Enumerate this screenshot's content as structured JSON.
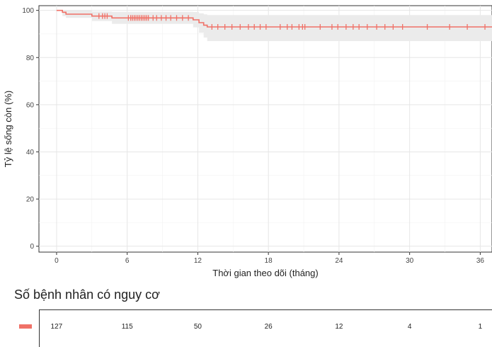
{
  "chart_data": {
    "type": "line",
    "subtype": "kaplan-meier",
    "xlabel": "Thời gian theo dõi (tháng)",
    "ylabel": "Tỷ lệ sống còn (%)",
    "xlim": [
      -1.5,
      37
    ],
    "ylim": [
      -2.5,
      102
    ],
    "x_ticks": [
      0,
      6,
      12,
      18,
      24,
      30,
      36
    ],
    "y_ticks": [
      0,
      20,
      40,
      60,
      80,
      100
    ],
    "grid": true,
    "color": "#F07167",
    "ci_color": "#EBEBEB",
    "series": [
      {
        "steps": [
          [
            0,
            100
          ],
          [
            0.5,
            99.2
          ],
          [
            0.8,
            98.4
          ],
          [
            3,
            97.6
          ],
          [
            4.7,
            96.8
          ],
          [
            11.6,
            96.0
          ],
          [
            12.1,
            94.8
          ],
          [
            12.5,
            93.7
          ],
          [
            12.8,
            93.0
          ],
          [
            37,
            93.0
          ]
        ],
        "ci_steps": [
          [
            0,
            100,
            100
          ],
          [
            0.5,
            97.6,
            100
          ],
          [
            0.8,
            96.8,
            100
          ],
          [
            3,
            95.5,
            99.5
          ],
          [
            4.7,
            94.3,
            99.4
          ],
          [
            11.6,
            92.8,
            99.3
          ],
          [
            12.1,
            90.5,
            98.8
          ],
          [
            12.5,
            88.5,
            98.3
          ],
          [
            12.8,
            87.0,
            98.0
          ],
          [
            37,
            87.0,
            98.0
          ]
        ],
        "censor_x": [
          3.6,
          3.9,
          4.1,
          4.3,
          6.1,
          6.3,
          6.45,
          6.6,
          6.75,
          6.9,
          7.05,
          7.2,
          7.35,
          7.5,
          7.65,
          7.8,
          8.2,
          8.5,
          8.9,
          9.3,
          9.7,
          10.2,
          10.7,
          11.2,
          13.2,
          13.7,
          14.3,
          14.9,
          15.6,
          16.3,
          16.8,
          17.3,
          17.8,
          19.0,
          19.6,
          20.0,
          20.6,
          20.9,
          21.1,
          22.4,
          23.4,
          23.9,
          24.6,
          25.2,
          25.7,
          26.4,
          27.2,
          27.9,
          28.6,
          29.4,
          31.5,
          33.4,
          34.9,
          36.4
        ]
      }
    ]
  },
  "risk_table": {
    "title": "Số bệnh nhân có nguy cơ",
    "times": [
      0,
      6,
      12,
      18,
      24,
      30,
      36
    ],
    "counts": [
      "127",
      "115",
      "50",
      "26",
      "12",
      "4",
      "1"
    ]
  }
}
